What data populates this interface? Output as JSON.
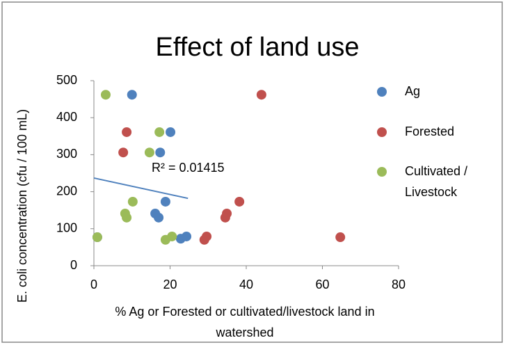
{
  "chart_data": {
    "type": "scatter",
    "title": "Effect of land use",
    "xlabel": [
      "% Ag or Forested or cultivated/livestock  land in",
      "watershed"
    ],
    "ylabel": "E. coli concentration (cfu / 100 mL)",
    "xlim": [
      0,
      80
    ],
    "xticks": [
      0,
      20,
      40,
      60,
      80
    ],
    "ylim": [
      0,
      500
    ],
    "yticks": [
      0,
      100,
      200,
      300,
      400,
      500
    ],
    "legend": "right",
    "series": [
      {
        "name": "Ag",
        "color": "#4f81bd",
        "x": [
          10,
          20.1,
          17.4,
          18.8,
          16.1,
          17,
          22.8,
          24.3,
          0.9
        ],
        "values": [
          462,
          361,
          306,
          173,
          141,
          130,
          73,
          79,
          77
        ]
      },
      {
        "name": "Forested",
        "color": "#c0504d",
        "x": [
          44,
          8.6,
          7.7,
          38.2,
          34.9,
          34.5,
          29.6,
          29,
          64.7
        ],
        "values": [
          462,
          361,
          306,
          173,
          141,
          130,
          79,
          70,
          77
        ]
      },
      {
        "name": "Cultivated / Livestock",
        "legend_lines": [
          "Cultivated /",
          "Livestock"
        ],
        "color": "#9bbb59",
        "x": [
          3.1,
          17.2,
          14.6,
          10.2,
          8.2,
          8.6,
          20.5,
          18.8,
          0.9
        ],
        "values": [
          462,
          361,
          306,
          173,
          141,
          130,
          79,
          70,
          77
        ]
      }
    ],
    "trendline": {
      "color": "#4f81bd",
      "x": [
        0,
        24.7
      ],
      "values": [
        237,
        182
      ]
    },
    "annotation": "R² = 0.01415"
  }
}
